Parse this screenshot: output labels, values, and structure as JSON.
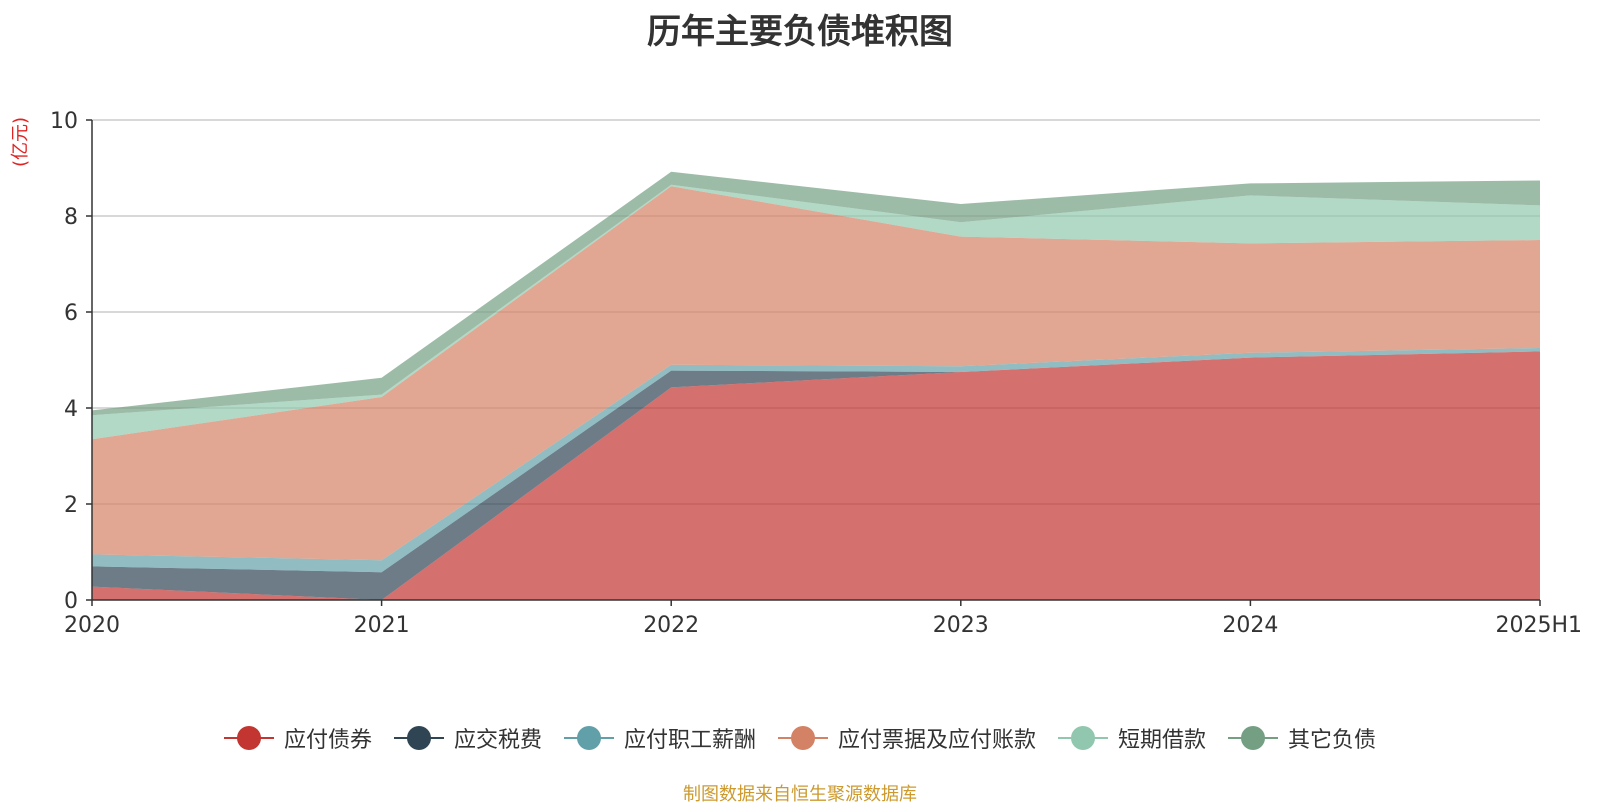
{
  "title": "历年主要负债堆积图",
  "source": "制图数据来自恒生聚源数据库",
  "chart_data": {
    "type": "area",
    "stacked": true,
    "title": "历年主要负债堆积图",
    "y_unit": "(亿元)",
    "categories": [
      "2020",
      "2021",
      "2022",
      "2023",
      "2024",
      "2025H1"
    ],
    "ylim": [
      0,
      10
    ],
    "y_ticks": [
      "0",
      "2",
      "4",
      "6",
      "8",
      "10"
    ],
    "grid": true,
    "legend_position": "bottom",
    "series": [
      {
        "name": "应付债券",
        "color": "#c23531",
        "values": [
          0.28,
          0.0,
          4.43,
          4.75,
          5.05,
          5.18
        ]
      },
      {
        "name": "应交税费",
        "color": "#2f4554",
        "values": [
          0.42,
          0.58,
          0.35,
          0.0,
          0.0,
          0.0
        ]
      },
      {
        "name": "应付职工薪酬",
        "color": "#61a0a8",
        "values": [
          0.25,
          0.25,
          0.12,
          0.12,
          0.1,
          0.07
        ]
      },
      {
        "name": "应付票据及应付账款",
        "color": "#d48265",
        "values": [
          2.4,
          3.4,
          3.72,
          2.7,
          2.28,
          2.25
        ]
      },
      {
        "name": "短期借款",
        "color": "#91c7ae",
        "values": [
          0.5,
          0.05,
          0.03,
          0.3,
          1.0,
          0.72
        ]
      },
      {
        "name": "其它负债",
        "color": "#749f83",
        "values": [
          0.1,
          0.35,
          0.27,
          0.38,
          0.25,
          0.52
        ]
      }
    ]
  }
}
